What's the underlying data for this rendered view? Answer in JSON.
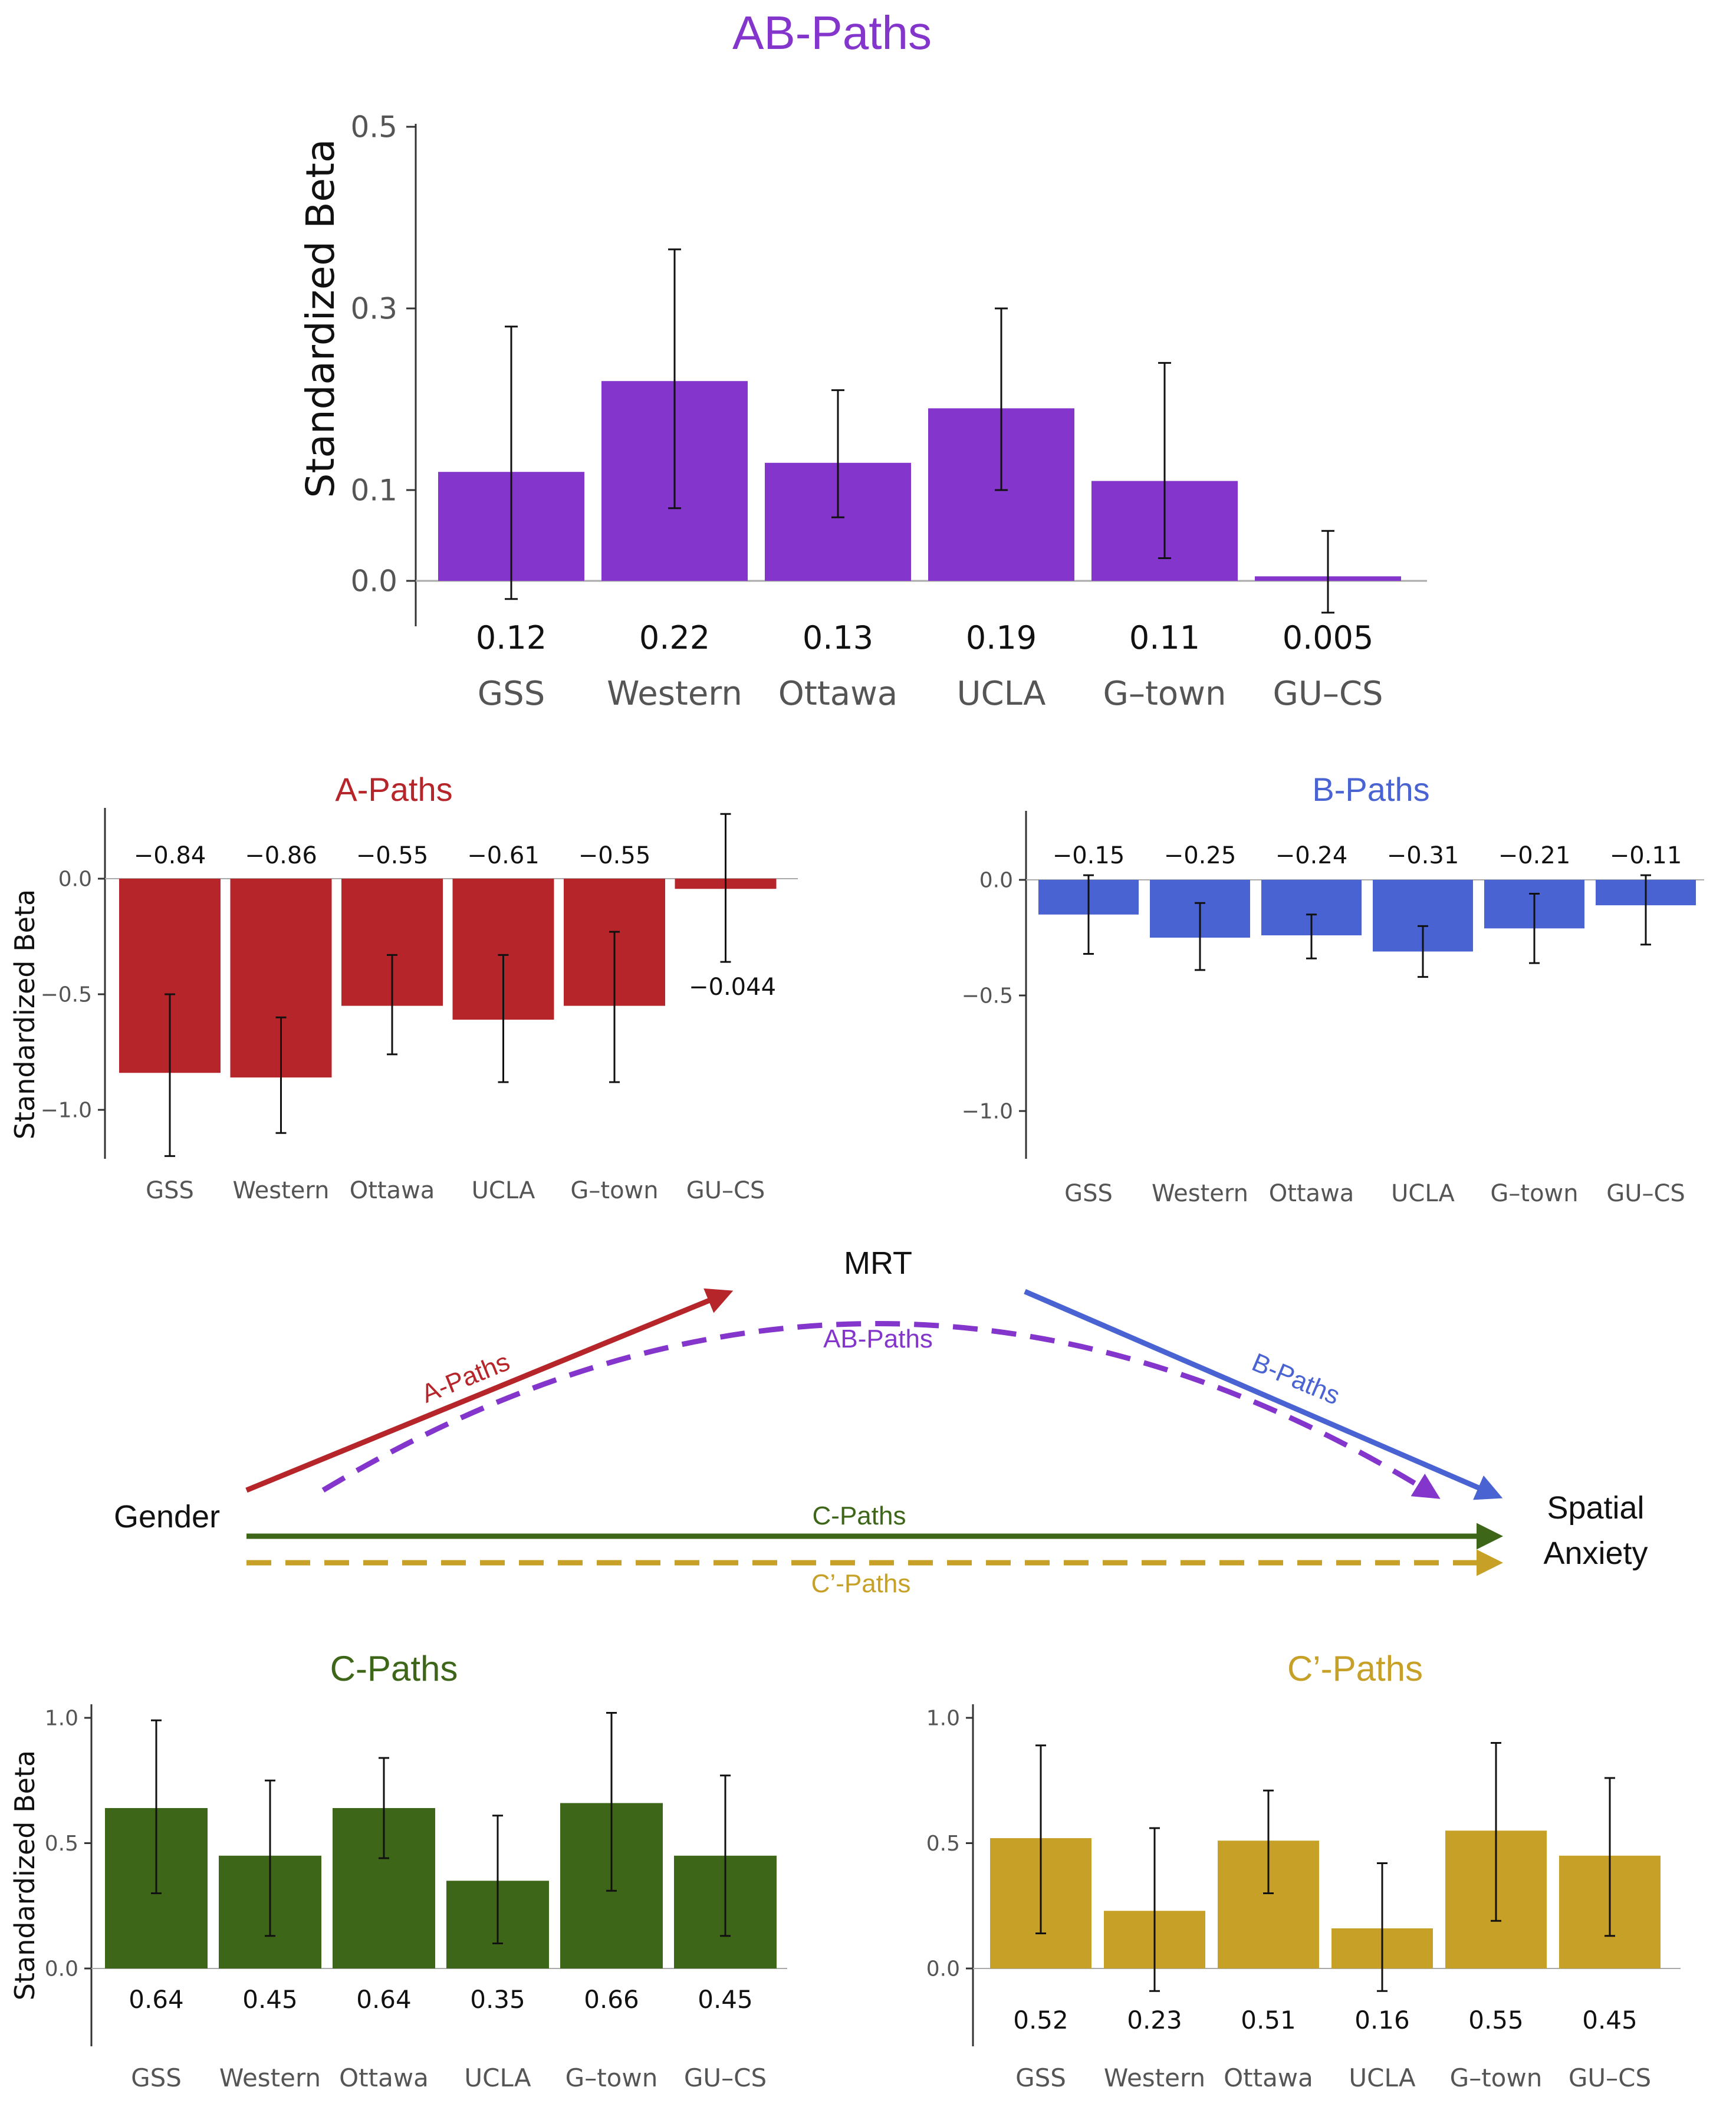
{
  "figure_title": "AB-Paths",
  "colors": {
    "ab": "#8435CB",
    "a": "#B52529",
    "b": "#4A63D2",
    "c": "#3E6619",
    "cprime": "#C7A027"
  },
  "diagram": {
    "mediator": "MRT",
    "predictor": "Gender",
    "outcome_line1": "Spatial",
    "outcome_line2": "Anxiety",
    "a_label": "A-Paths",
    "b_label": "B-Paths",
    "ab_label": "AB-Paths",
    "c_label": "C-Paths",
    "cprime_label": "C’-Paths"
  },
  "chart_data": [
    {
      "id": "ab",
      "type": "bar",
      "title": "AB-Paths",
      "ylabel": "Standardized Beta",
      "xlabel": "",
      "categories": [
        "GSS",
        "Western",
        "Ottawa",
        "UCLA",
        "G–town",
        "GU–CS"
      ],
      "values": [
        0.12,
        0.22,
        0.13,
        0.19,
        0.11,
        0.005
      ],
      "value_labels": [
        "0.12",
        "0.22",
        "0.13",
        "0.19",
        "0.11",
        "0.005"
      ],
      "error_low": [
        -0.02,
        0.08,
        0.07,
        0.1,
        0.025,
        -0.035
      ],
      "error_high": [
        0.28,
        0.365,
        0.21,
        0.3,
        0.24,
        0.055
      ],
      "yticks": [
        0.0,
        0.1,
        0.3,
        0.5
      ],
      "ytick_labels": [
        "0.0",
        "0.1",
        "0.3",
        "0.5"
      ],
      "ylim": [
        -0.05,
        0.5
      ]
    },
    {
      "id": "a",
      "type": "bar",
      "title": "A-Paths",
      "ylabel": "Standardized Beta",
      "xlabel": "",
      "categories": [
        "GSS",
        "Western",
        "Ottawa",
        "UCLA",
        "G–town",
        "GU–CS"
      ],
      "values": [
        -0.84,
        -0.86,
        -0.55,
        -0.61,
        -0.55,
        -0.044
      ],
      "value_labels": [
        "−0.84",
        "−0.86",
        "−0.55",
        "−0.61",
        "−0.55",
        "−0.044"
      ],
      "error_low": [
        -1.2,
        -1.1,
        -0.76,
        -0.88,
        -0.88,
        -0.36
      ],
      "error_high": [
        -0.5,
        -0.6,
        -0.33,
        -0.33,
        -0.23,
        0.28
      ],
      "yticks": [
        0.0,
        -0.5,
        -1.0
      ],
      "ytick_labels": [
        "0.0",
        "−0.5",
        "−1.0"
      ],
      "ylim": [
        -1.2,
        0.28
      ]
    },
    {
      "id": "b",
      "type": "bar",
      "title": "B-Paths",
      "ylabel": "",
      "xlabel": "",
      "categories": [
        "GSS",
        "Western",
        "Ottawa",
        "UCLA",
        "G–town",
        "GU–CS"
      ],
      "values": [
        -0.15,
        -0.25,
        -0.24,
        -0.31,
        -0.21,
        -0.11
      ],
      "value_labels": [
        "−0.15",
        "−0.25",
        "−0.24",
        "−0.31",
        "−0.21",
        "−0.11"
      ],
      "error_low": [
        -0.32,
        -0.39,
        -0.34,
        -0.42,
        -0.36,
        -0.28
      ],
      "error_high": [
        0.02,
        -0.1,
        -0.15,
        -0.2,
        -0.06,
        0.02
      ],
      "yticks": [
        0.0,
        -0.5,
        -1.0
      ],
      "ytick_labels": [
        "0.0",
        "−0.5",
        "−1.0"
      ],
      "ylim": [
        -1.2,
        0.28
      ]
    },
    {
      "id": "c",
      "type": "bar",
      "title": "C-Paths",
      "ylabel": "Standardized Beta",
      "xlabel": "",
      "categories": [
        "GSS",
        "Western",
        "Ottawa",
        "UCLA",
        "G–town",
        "GU–CS"
      ],
      "values": [
        0.64,
        0.45,
        0.64,
        0.35,
        0.66,
        0.45
      ],
      "value_labels": [
        "0.64",
        "0.45",
        "0.64",
        "0.35",
        "0.66",
        "0.45"
      ],
      "error_low": [
        0.3,
        0.13,
        0.44,
        0.1,
        0.31,
        0.13
      ],
      "error_high": [
        0.99,
        0.75,
        0.84,
        0.61,
        1.02,
        0.77
      ],
      "yticks": [
        0.0,
        0.5,
        1.0
      ],
      "ytick_labels": [
        "0.0",
        "0.5",
        "1.0"
      ],
      "ylim": [
        -0.3,
        1.05
      ]
    },
    {
      "id": "cprime",
      "type": "bar",
      "title": "C’-Paths",
      "ylabel": "",
      "xlabel": "",
      "categories": [
        "GSS",
        "Western",
        "Ottawa",
        "UCLA",
        "G–town",
        "GU–CS"
      ],
      "values": [
        0.52,
        0.23,
        0.51,
        0.16,
        0.55,
        0.45
      ],
      "value_labels": [
        "0.52",
        "0.23",
        "0.51",
        "0.16",
        "0.55",
        "0.45"
      ],
      "error_low": [
        0.14,
        -0.09,
        0.3,
        -0.09,
        0.19,
        0.13
      ],
      "error_high": [
        0.89,
        0.56,
        0.71,
        0.42,
        0.9,
        0.76
      ],
      "yticks": [
        0.0,
        0.5,
        1.0
      ],
      "ytick_labels": [
        "0.0",
        "0.5",
        "1.0"
      ],
      "ylim": [
        -0.3,
        1.05
      ]
    }
  ]
}
